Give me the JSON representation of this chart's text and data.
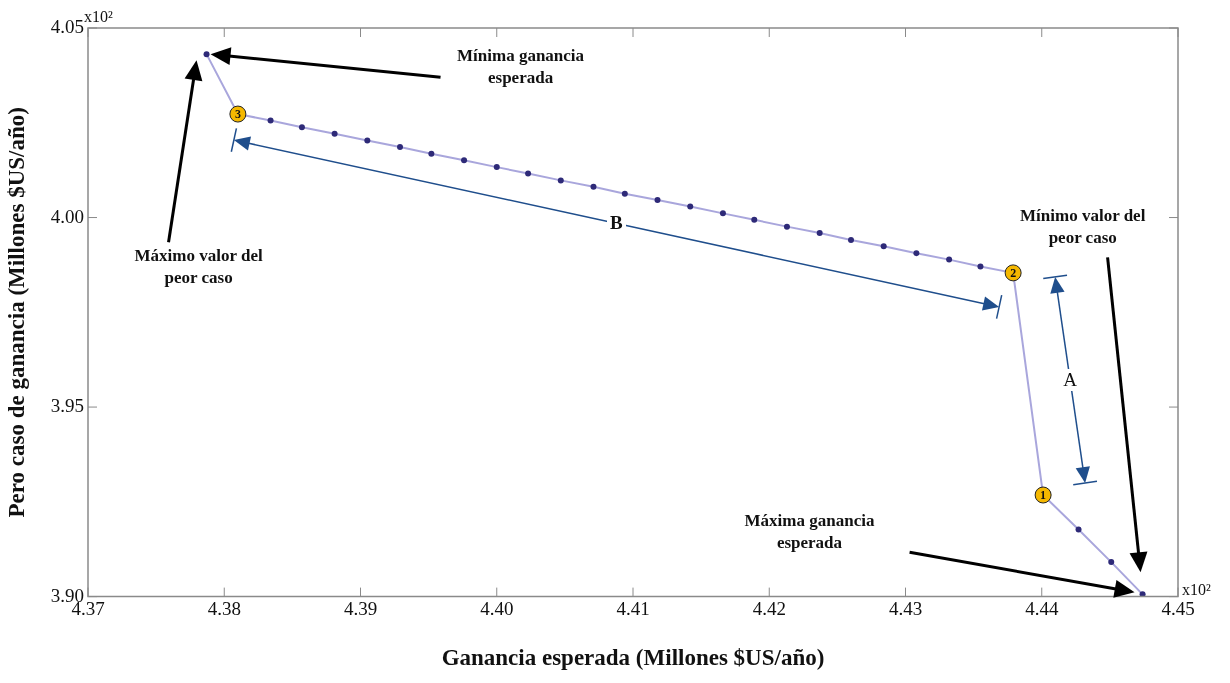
{
  "chart_data": {
    "type": "line",
    "xlabel": "Ganancia esperada (Millones $US/año)",
    "ylabel": "Pero caso de ganancia (Millones $US/año)",
    "xlim": [
      4.37,
      4.45
    ],
    "xticks": [
      4.37,
      4.38,
      4.39,
      {
        "value": 4.4,
        "label": "4.40"
      },
      4.41,
      4.42,
      4.43,
      4.44,
      4.45
    ],
    "ylim": [
      3.9,
      4.05
    ],
    "yticks": [
      {
        "value": 3.9,
        "label": "3.90"
      },
      3.95,
      {
        "value": 4,
        "label": "4.00"
      },
      4.05
    ],
    "marker": "circle",
    "legend": false,
    "series": [
      {
        "color": "#6f6ac4",
        "colors": [
          "#2e2a78",
          "#f5b800",
          "#2e2a78",
          "#2e2a78",
          "#2e2a78",
          "#2e2a78",
          "#2e2a78",
          "#2e2a78",
          "#2e2a78",
          "#2e2a78",
          "#2e2a78",
          "#2e2a78",
          "#2e2a78",
          "#2e2a78",
          "#2e2a78",
          "#2e2a78",
          "#2e2a78",
          "#2e2a78",
          "#2e2a78",
          "#2e2a78",
          "#2e2a78",
          "#2e2a78",
          "#2e2a78",
          "#2e2a78",
          "#2e2a78",
          "#f5b800",
          "#f5b800",
          "#2e2a78",
          "#2e2a78",
          "#2e2a78"
        ],
        "x": [
          4.3787,
          4.381,
          4.3834,
          4.3857,
          4.3881,
          4.3905,
          4.3929,
          4.3952,
          4.3976,
          4.4,
          4.4023,
          4.4047,
          4.4071,
          4.4094,
          4.4118,
          4.4142,
          4.4166,
          4.4189,
          4.4213,
          4.4237,
          4.426,
          4.4284,
          4.4308,
          4.4332,
          4.4355,
          4.4379,
          4.4401,
          4.4427,
          4.4451,
          4.4474
        ],
        "values": [
          4.0431,
          4.0273,
          4.0256,
          4.0238,
          4.0221,
          4.0203,
          4.0186,
          4.0168,
          4.0151,
          4.0133,
          4.0116,
          4.0098,
          4.0081,
          4.0063,
          4.0046,
          4.0029,
          4.0011,
          3.9994,
          3.9976,
          3.9959,
          3.9941,
          3.9924,
          3.9906,
          3.9889,
          3.9871,
          3.9854,
          3.9268,
          3.9177,
          3.9091,
          3.9006
        ]
      }
    ],
    "annotations": [
      "Mínima ganancia\nesperada",
      "Máximo valor del\npeor caso",
      "Mínimo valor del\npeor caso",
      "Máxima ganancia\nesperada",
      {
        "text": "1",
        "x": 4.4401,
        "y": 3.9268
      },
      {
        "text": "2",
        "x": 4.4379,
        "y": 3.9854
      },
      {
        "text": "3",
        "x": 4.381,
        "y": 4.0273
      },
      "B",
      "A",
      "x10²",
      "x10²"
    ]
  }
}
